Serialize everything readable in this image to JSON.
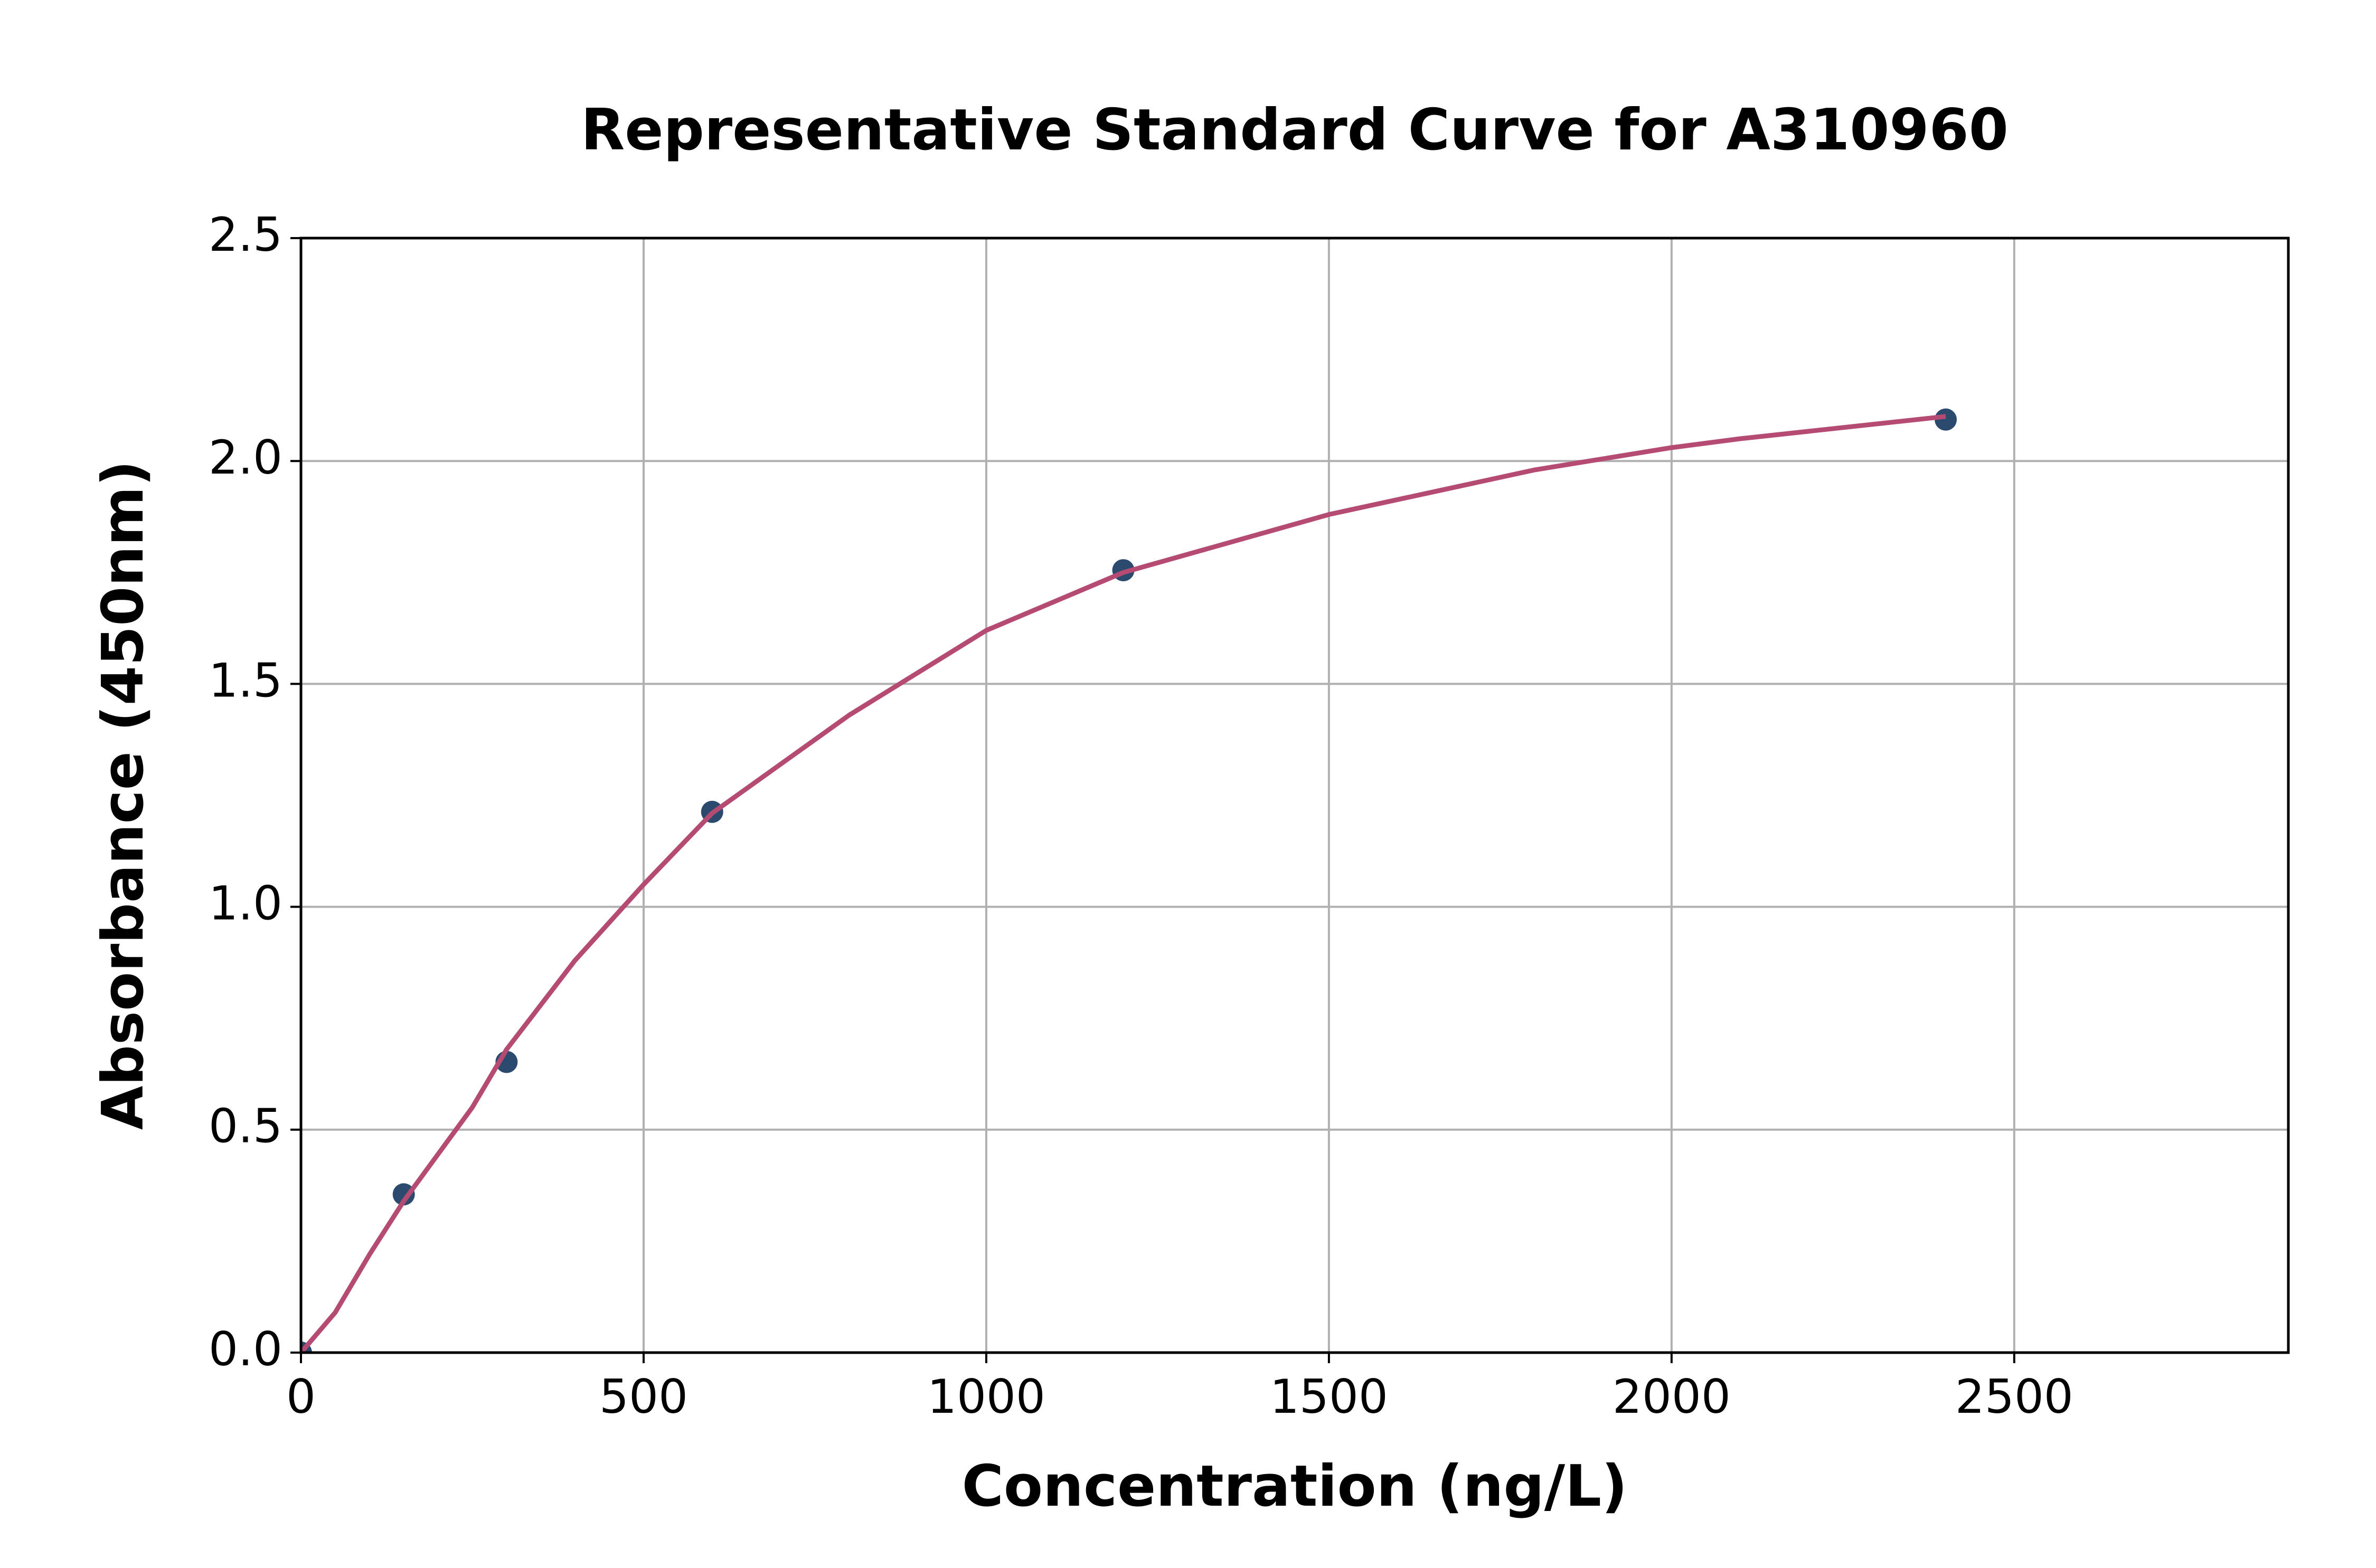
{
  "chart_data": {
    "type": "scatter",
    "title": "Representative Standard Curve for A310960",
    "x_label": "Concentration (ng/L)",
    "y_label": "Absorbance (450nm)",
    "series": [
      {
        "type": "scatter",
        "color": "#2c4a6e",
        "x": [
          0,
          150,
          300,
          600,
          1200,
          2400
        ],
        "values": [
          0.0,
          0.355,
          0.652,
          1.213,
          1.755,
          2.093
        ]
      },
      {
        "type": "line",
        "color": "#b54b72",
        "x": [
          0,
          50,
          100,
          150,
          250,
          300,
          400,
          500,
          600,
          800,
          1000,
          1200,
          1500,
          1800,
          2000,
          2100,
          2400
        ],
        "values": [
          0.0,
          0.09,
          0.22,
          0.34,
          0.55,
          0.68,
          0.88,
          1.05,
          1.21,
          1.43,
          1.62,
          1.75,
          1.88,
          1.98,
          2.03,
          2.05,
          2.1
        ]
      }
    ],
    "xlim": [
      0,
      2900
    ],
    "ylim": [
      0,
      2.5
    ],
    "xticks": [
      0,
      500,
      1000,
      1500,
      2000,
      2500
    ],
    "yticks": [
      {
        "value": 0,
        "label": "0.0"
      },
      {
        "value": 0.5,
        "label": "0.5"
      },
      {
        "value": 1,
        "label": "1.0"
      },
      {
        "value": 1.5,
        "label": "1.5"
      },
      {
        "value": 2,
        "label": "2.0"
      },
      {
        "value": 2.5,
        "label": "2.5"
      }
    ],
    "grid": true
  }
}
